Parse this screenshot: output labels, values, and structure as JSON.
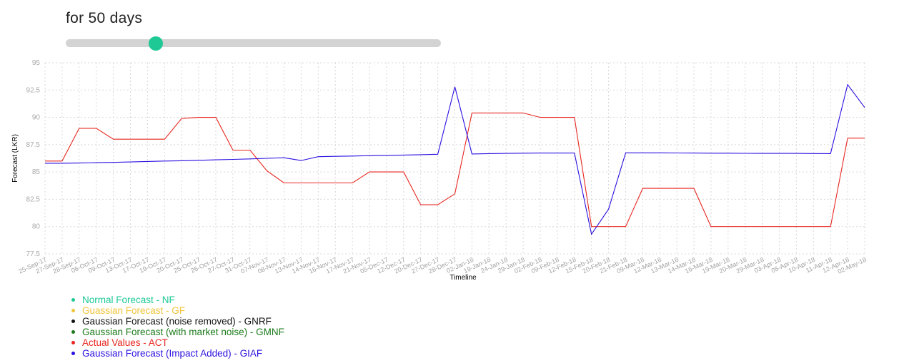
{
  "header": {
    "title": "for 50 days"
  },
  "slider": {
    "fraction": 0.24,
    "color": "#1ec995",
    "track_color": "#d3d3d3"
  },
  "chart_data": {
    "type": "line",
    "ylabel": "Forecast (LKR)",
    "xlabel": "Timeline",
    "ylim": [
      77.5,
      95
    ],
    "yticks": [
      77.5,
      80,
      82.5,
      85,
      87.5,
      90,
      92.5,
      95
    ],
    "grid": true,
    "categories": [
      "25-Sep-17",
      "27-Sep-17",
      "28-Sep-17",
      "06-Oct-17",
      "09-Oct-17",
      "13-Oct-17",
      "17-Oct-17",
      "19-Oct-17",
      "20-Oct-17",
      "25-Oct-17",
      "26-Oct-17",
      "27-Oct-17",
      "31-Oct-17",
      "07-Nov-17",
      "08-Nov-17",
      "13-Nov-17",
      "14-Nov-17",
      "16-Nov-17",
      "17-Nov-17",
      "21-Nov-17",
      "05-Dec-17",
      "12-Dec-17",
      "20-Dec-17",
      "27-Dec-17",
      "28-Dec-17",
      "02-Jan-18",
      "19-Jan-18",
      "24-Jan-18",
      "29-Jan-18",
      "02-Feb-18",
      "09-Feb-18",
      "12-Feb-18",
      "15-Feb-18",
      "20-Feb-18",
      "21-Feb-18",
      "09-Mar-18",
      "12-Mar-18",
      "13-Mar-18",
      "14-Mar-18",
      "16-Mar-18",
      "19-Mar-18",
      "20-Mar-18",
      "29-Mar-18",
      "03-Apr-18",
      "05-Apr-18",
      "10-Apr-18",
      "11-Apr-18",
      "12-Apr-18",
      "02-May-18"
    ],
    "series": [
      {
        "name": "Actual Values - ACT",
        "color": "#e8261f",
        "values": [
          86,
          86,
          89,
          89,
          88,
          88,
          88,
          88,
          89.9,
          90,
          90,
          87,
          87,
          85.1,
          84,
          84,
          84,
          84,
          84,
          85,
          85,
          85,
          82,
          82,
          83,
          90.4,
          90.4,
          90.4,
          90.4,
          90,
          90,
          90,
          80,
          80,
          80,
          83.5,
          83.5,
          83.5,
          83.5,
          80,
          80,
          80,
          80,
          80,
          80,
          80,
          80,
          88.1,
          88.1
        ]
      },
      {
        "name": "Gaussian Forecast (Impact Added) - GIAF",
        "color": "#2a10e0",
        "values": [
          85.8,
          85.8,
          85.82,
          85.85,
          85.88,
          85.92,
          85.96,
          86,
          86.03,
          86.07,
          86.11,
          86.15,
          86.2,
          86.25,
          86.3,
          86.05,
          86.4,
          86.43,
          86.46,
          86.49,
          86.52,
          86.55,
          86.58,
          86.62,
          92.8,
          86.65,
          86.68,
          86.7,
          86.72,
          86.73,
          86.73,
          86.73,
          79.3,
          81.6,
          86.75,
          86.75,
          86.75,
          86.74,
          86.73,
          86.72,
          86.72,
          86.71,
          86.7,
          86.7,
          86.7,
          86.69,
          86.68,
          93,
          90.9
        ]
      }
    ],
    "legend": [
      {
        "label": "Normal Forecast - NF",
        "color": "#1ec995"
      },
      {
        "label": "Guassian Forecast - GF",
        "color": "#f2c43a"
      },
      {
        "label": "Gaussian Forecast (noise removed) - GNRF",
        "color": "#111111"
      },
      {
        "label": "Gaussian Forecast (with market noise) - GMNF",
        "color": "#1a7a1a"
      },
      {
        "label": "Actual Values - ACT",
        "color": "#e8261f"
      },
      {
        "label": "Gaussian Forecast (Impact Added) - GIAF",
        "color": "#2a10e0"
      }
    ]
  }
}
